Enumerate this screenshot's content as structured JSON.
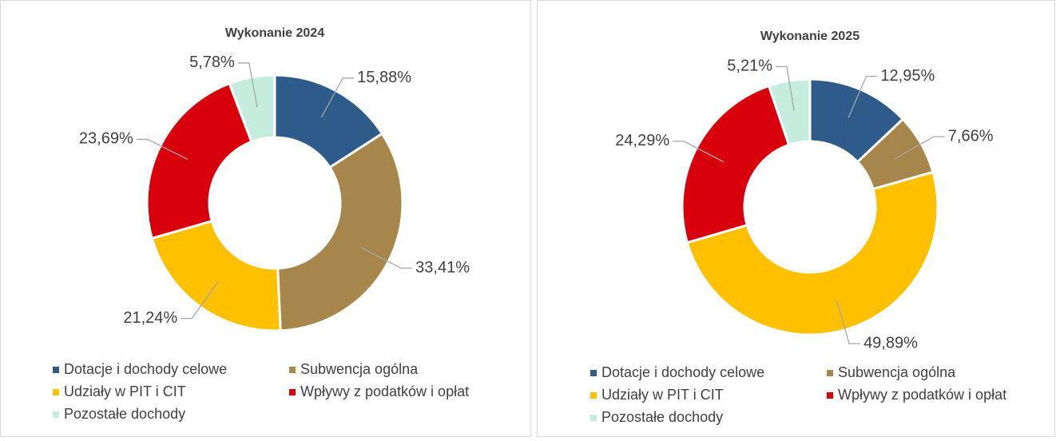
{
  "chart_data": [
    {
      "type": "donut",
      "title": "Wykonanie 2024",
      "categories": [
        "Dotacje i dochody celowe",
        "Subwencja ogólna",
        "Udziały w PIT i CIT",
        "Wpływy z podatków i opłat",
        "Pozostałe dochody"
      ],
      "values": [
        15.88,
        33.41,
        21.24,
        23.69,
        5.78
      ],
      "value_labels": [
        "15,88%",
        "33,41%",
        "21,24%",
        "23,69%",
        "5,78%"
      ],
      "colors": [
        "#2e5b8a",
        "#a6864a",
        "#ffc000",
        "#d9000d",
        "#c5ecdc"
      ]
    },
    {
      "type": "donut",
      "title": "Wykonanie 2025",
      "categories": [
        "Dotacje i dochody celowe",
        "Subwencja ogólna",
        "Udziały w PIT i CIT",
        "Wpływy z podatków i opłat",
        "Pozostałe dochody"
      ],
      "values": [
        12.95,
        7.66,
        49.89,
        24.29,
        5.21
      ],
      "value_labels": [
        "12,95%",
        "7,66%",
        "49,89%",
        "24,29%",
        "5,21%"
      ],
      "colors": [
        "#2e5b8a",
        "#a6864a",
        "#ffc000",
        "#d9000d",
        "#c5ecdc"
      ]
    }
  ]
}
